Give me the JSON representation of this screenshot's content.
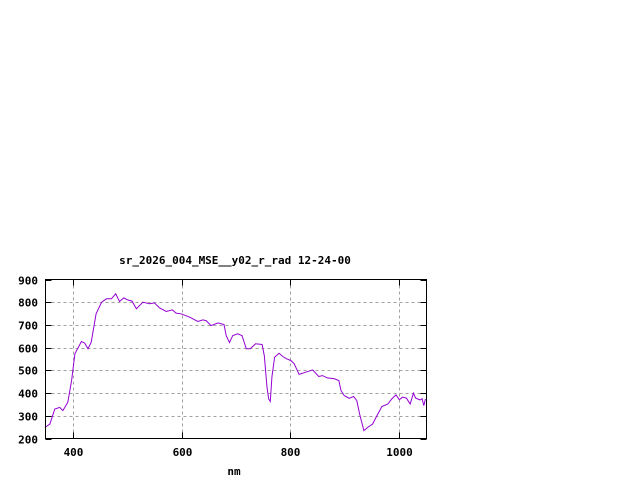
{
  "chart_data": {
    "type": "line",
    "title": "sr_2026_004_MSE__y02_r_rad 12-24-00",
    "xlabel": "nm",
    "ylabel": "",
    "xlim": [
      350,
      1050
    ],
    "ylim": [
      200,
      900
    ],
    "xticks": [
      400,
      600,
      800,
      1000
    ],
    "yticks": [
      200,
      300,
      400,
      500,
      600,
      700,
      800,
      900
    ],
    "grid": true,
    "line_color": "#9400d3",
    "grid_color": "#a0a0a0",
    "series": [
      {
        "x": [
          349,
          358,
          367,
          376,
          382,
          391,
          398,
          404,
          416,
          422,
          428,
          434,
          443,
          453,
          462,
          471,
          479,
          486,
          494,
          500,
          509,
          517,
          529,
          541,
          550,
          560,
          572,
          583,
          590,
          599,
          615,
          630,
          639,
          645,
          654,
          667,
          678,
          682,
          688,
          694,
          703,
          711,
          719,
          726,
          736,
          748,
          752,
          757,
          760,
          763,
          766,
          771,
          779,
          786,
          793,
          801,
          807,
          816,
          828,
          841,
          852,
          859,
          868,
          881,
          889,
          893,
          899,
          908,
          916,
          922,
          927,
          935,
          942,
          951,
          960,
          968,
          979,
          986,
          994,
          1000,
          1006,
          1013,
          1020,
          1026,
          1030,
          1038,
          1042,
          1045,
          1048
        ],
        "y": [
          249,
          264,
          330,
          337,
          323,
          360,
          455,
          573,
          627,
          620,
          595,
          624,
          749,
          800,
          815,
          815,
          837,
          803,
          819,
          811,
          805,
          771,
          800,
          793,
          797,
          774,
          759,
          766,
          752,
          749,
          734,
          715,
          722,
          719,
          697,
          709,
          702,
          653,
          622,
          653,
          661,
          653,
          595,
          595,
          617,
          614,
          565,
          426,
          374,
          363,
          470,
          558,
          575,
          561,
          551,
          543,
          529,
          482,
          492,
          502,
          473,
          477,
          467,
          463,
          455,
          411,
          389,
          377,
          385,
          367,
          308,
          235,
          249,
          264,
          305,
          341,
          352,
          374,
          392,
          371,
          382,
          378,
          352,
          400,
          378,
          370,
          375,
          345,
          374
        ]
      }
    ]
  }
}
